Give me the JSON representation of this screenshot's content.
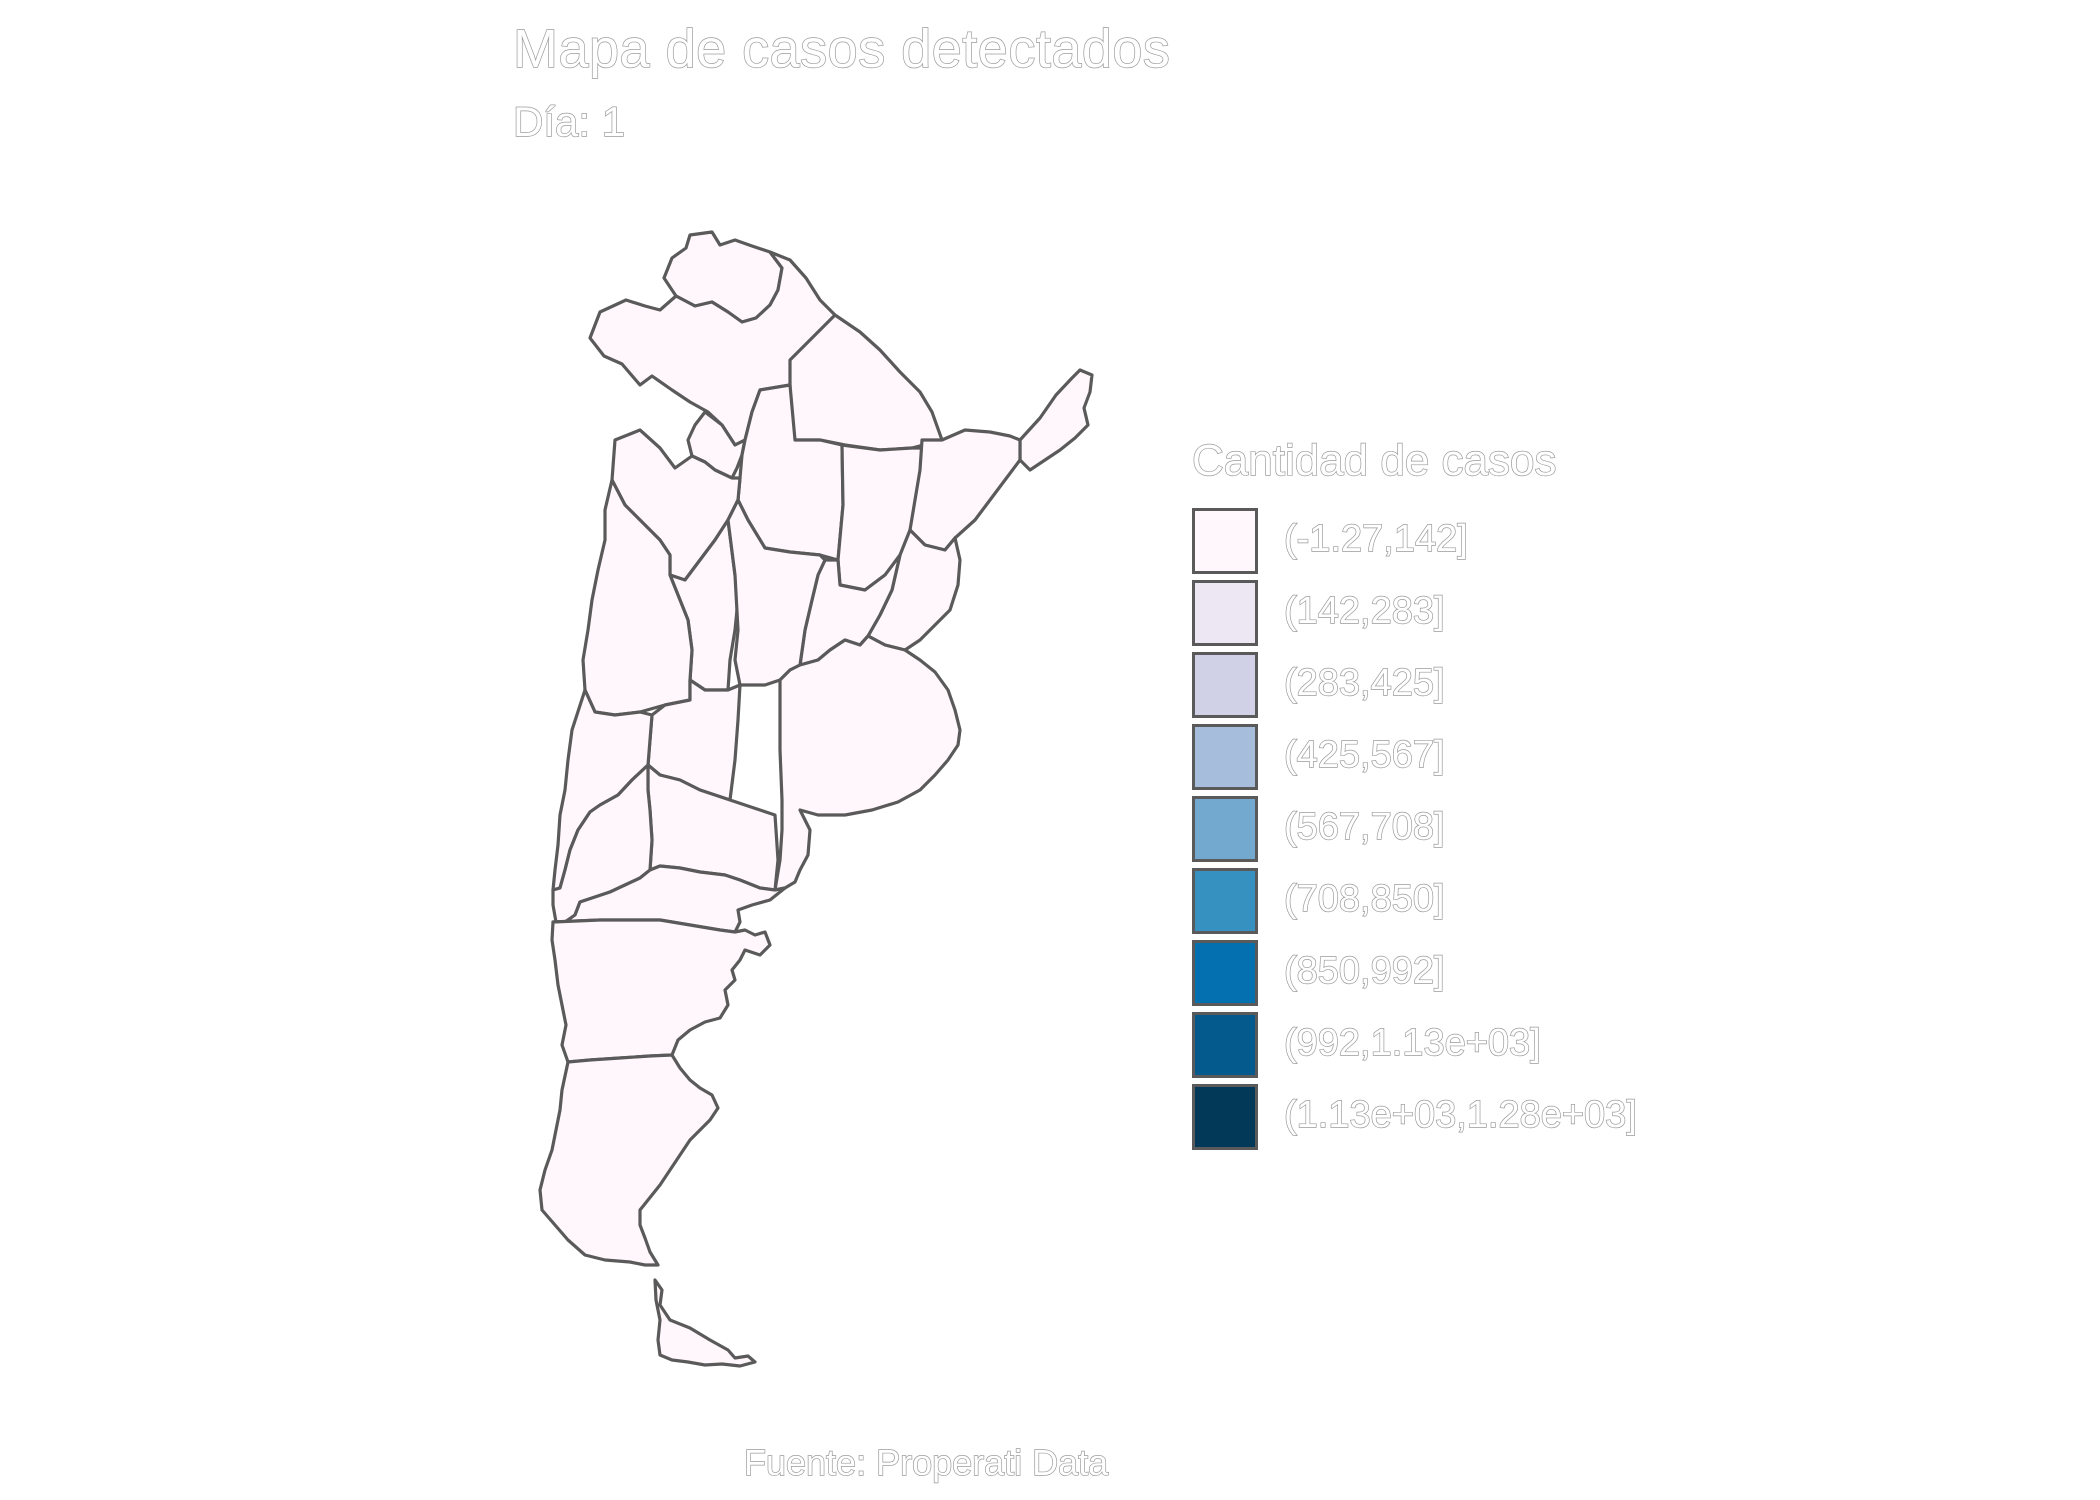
{
  "title": "Mapa de casos detectados",
  "subtitle": "Día: 1",
  "caption": "Fuente: Properati Data",
  "legend": {
    "title": "Cantidad de casos",
    "items": [
      {
        "label": "(-1.27,142]",
        "color": "#fff7fb"
      },
      {
        "label": "(142,283]",
        "color": "#ece7f2"
      },
      {
        "label": "(283,425]",
        "color": "#d0d1e6"
      },
      {
        "label": "(425,567]",
        "color": "#a6bddb"
      },
      {
        "label": "(567,708]",
        "color": "#74a9cf"
      },
      {
        "label": "(708,850]",
        "color": "#3690c0"
      },
      {
        "label": "(850,992]",
        "color": "#0570b0"
      },
      {
        "label": "(992,1.13e+03]",
        "color": "#045a8d"
      },
      {
        "label": "(1.13e+03,1.28e+03]",
        "color": "#023858"
      }
    ]
  },
  "map": {
    "fill_color": "#fff7fb",
    "border_color": "#5a5a5a"
  }
}
